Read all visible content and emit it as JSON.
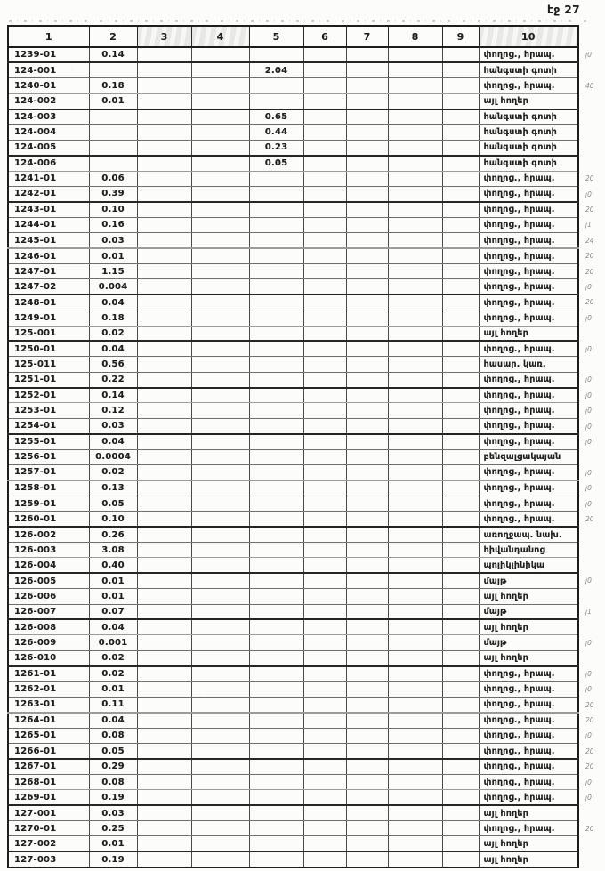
{
  "page_label": "էջ 27",
  "table": {
    "columns": [
      "1",
      "2",
      "3",
      "4",
      "5",
      "6",
      "7",
      "8",
      "9",
      "10"
    ],
    "rows": [
      [
        "1239-01",
        "0.14",
        "",
        "փողոց., հրապ.",
        "յ0"
      ],
      [
        "124-001",
        "",
        "2.04",
        "հանգստի գոտի",
        ""
      ],
      [
        "1240-01",
        "0.18",
        "",
        "փողոց., հրապ.",
        "40"
      ],
      [
        "124-002",
        "0.01",
        "",
        "այլ հողեր",
        ""
      ],
      [
        "124-003",
        "",
        "0.65",
        "հանգստի գոտի",
        ""
      ],
      [
        "124-004",
        "",
        "0.44",
        "հանգստի գոտի",
        ""
      ],
      [
        "124-005",
        "",
        "0.23",
        "հանգստի գոտի",
        ""
      ],
      [
        "124-006",
        "",
        "0.05",
        "հանգստի գոտի",
        ""
      ],
      [
        "1241-01",
        "0.06",
        "",
        "փողոց., հրապ.",
        "20"
      ],
      [
        "1242-01",
        "0.39",
        "",
        "փողոց., հրապ.",
        "յ0"
      ],
      [
        "1243-01",
        "0.10",
        "",
        "փողոց., հրապ.",
        "20"
      ],
      [
        "1244-01",
        "0.16",
        "",
        "փողոց., հրապ.",
        "յ1"
      ],
      [
        "1245-01",
        "0.03",
        "",
        "փողոց., հրապ.",
        "24"
      ],
      [
        "1246-01",
        "0.01",
        "",
        "փողոց., հրապ.",
        "20"
      ],
      [
        "1247-01",
        "1.15",
        "",
        "փողոց., հրապ.",
        "20"
      ],
      [
        "1247-02",
        "0.004",
        "",
        "փողոց., հրապ.",
        "յ0"
      ],
      [
        "1248-01",
        "0.04",
        "",
        "փողոց., հրապ.",
        "20"
      ],
      [
        "1249-01",
        "0.18",
        "",
        "փողոց., հրապ.",
        "յ0"
      ],
      [
        "125-001",
        "0.02",
        "",
        "այլ հողեր",
        ""
      ],
      [
        "1250-01",
        "0.04",
        "",
        "փողոց., հրապ.",
        "յ0"
      ],
      [
        "125-011",
        "0.56",
        "",
        "հասար. կառ.",
        ""
      ],
      [
        "1251-01",
        "0.22",
        "",
        "փողոց., հրապ.",
        "յ0"
      ],
      [
        "1252-01",
        "0.14",
        "",
        "փողոց., հրապ.",
        "յ0"
      ],
      [
        "1253-01",
        "0.12",
        "",
        "փողոց., հրապ.",
        "յ0"
      ],
      [
        "1254-01",
        "0.03",
        "",
        "փողոց., հրապ.",
        "յ0"
      ],
      [
        "1255-01",
        "0.04",
        "",
        "փողոց., հրապ.",
        "յ0"
      ],
      [
        "1256-01",
        "0.0004",
        "",
        "բենզալցակայան",
        ""
      ],
      [
        "1257-01",
        "0.02",
        "",
        "փողոց., հրապ.",
        "յ0"
      ],
      [
        "1258-01",
        "0.13",
        "",
        "փողոց., հրապ.",
        "յ0"
      ],
      [
        "1259-01",
        "0.05",
        "",
        "փողոց., հրապ.",
        "յ0"
      ],
      [
        "1260-01",
        "0.10",
        "",
        "փողոց., հրապ.",
        "20"
      ],
      [
        "126-002",
        "0.26",
        "",
        "առողջապ. նախ.",
        ""
      ],
      [
        "126-003",
        "3.08",
        "",
        "հիվանդանոց",
        ""
      ],
      [
        "126-004",
        "0.40",
        "",
        "պոլիկլինիկա",
        ""
      ],
      [
        "126-005",
        "0.01",
        "",
        "մայթ",
        "յ0"
      ],
      [
        "126-006",
        "0.01",
        "",
        "այլ հողեր",
        ""
      ],
      [
        "126-007",
        "0.07",
        "",
        "մայթ",
        "յ1"
      ],
      [
        "126-008",
        "0.04",
        "",
        "այլ հողեր",
        ""
      ],
      [
        "126-009",
        "0.001",
        "",
        "մայթ",
        "յ0"
      ],
      [
        "126-010",
        "0.02",
        "",
        "այլ հողեր",
        ""
      ],
      [
        "1261-01",
        "0.02",
        "",
        "փողոց., հրապ.",
        "յ0"
      ],
      [
        "1262-01",
        "0.01",
        "",
        "փողոց., հրապ.",
        "յ0"
      ],
      [
        "1263-01",
        "0.11",
        "",
        "փողոց., հրապ.",
        "20"
      ],
      [
        "1264-01",
        "0.04",
        "",
        "փողոց., հրապ.",
        "20"
      ],
      [
        "1265-01",
        "0.08",
        "",
        "փողոց., հրապ.",
        "յ0"
      ],
      [
        "1266-01",
        "0.05",
        "",
        "փողոց., հրապ.",
        "20"
      ],
      [
        "1267-01",
        "0.29",
        "",
        "փողոց., հրապ.",
        "20"
      ],
      [
        "1268-01",
        "0.08",
        "",
        "փողոց., հրապ.",
        "յ0"
      ],
      [
        "1269-01",
        "0.19",
        "",
        "փողոց., հրապ.",
        "յ0"
      ],
      [
        "127-001",
        "0.03",
        "",
        "այլ հողեր",
        ""
      ],
      [
        "1270-01",
        "0.25",
        "",
        "փողոց., հրապ.",
        "20"
      ],
      [
        "127-002",
        "0.01",
        "",
        "այլ հողեր",
        ""
      ],
      [
        "127-003",
        "0.19",
        "",
        "այլ հողեր",
        ""
      ]
    ]
  }
}
